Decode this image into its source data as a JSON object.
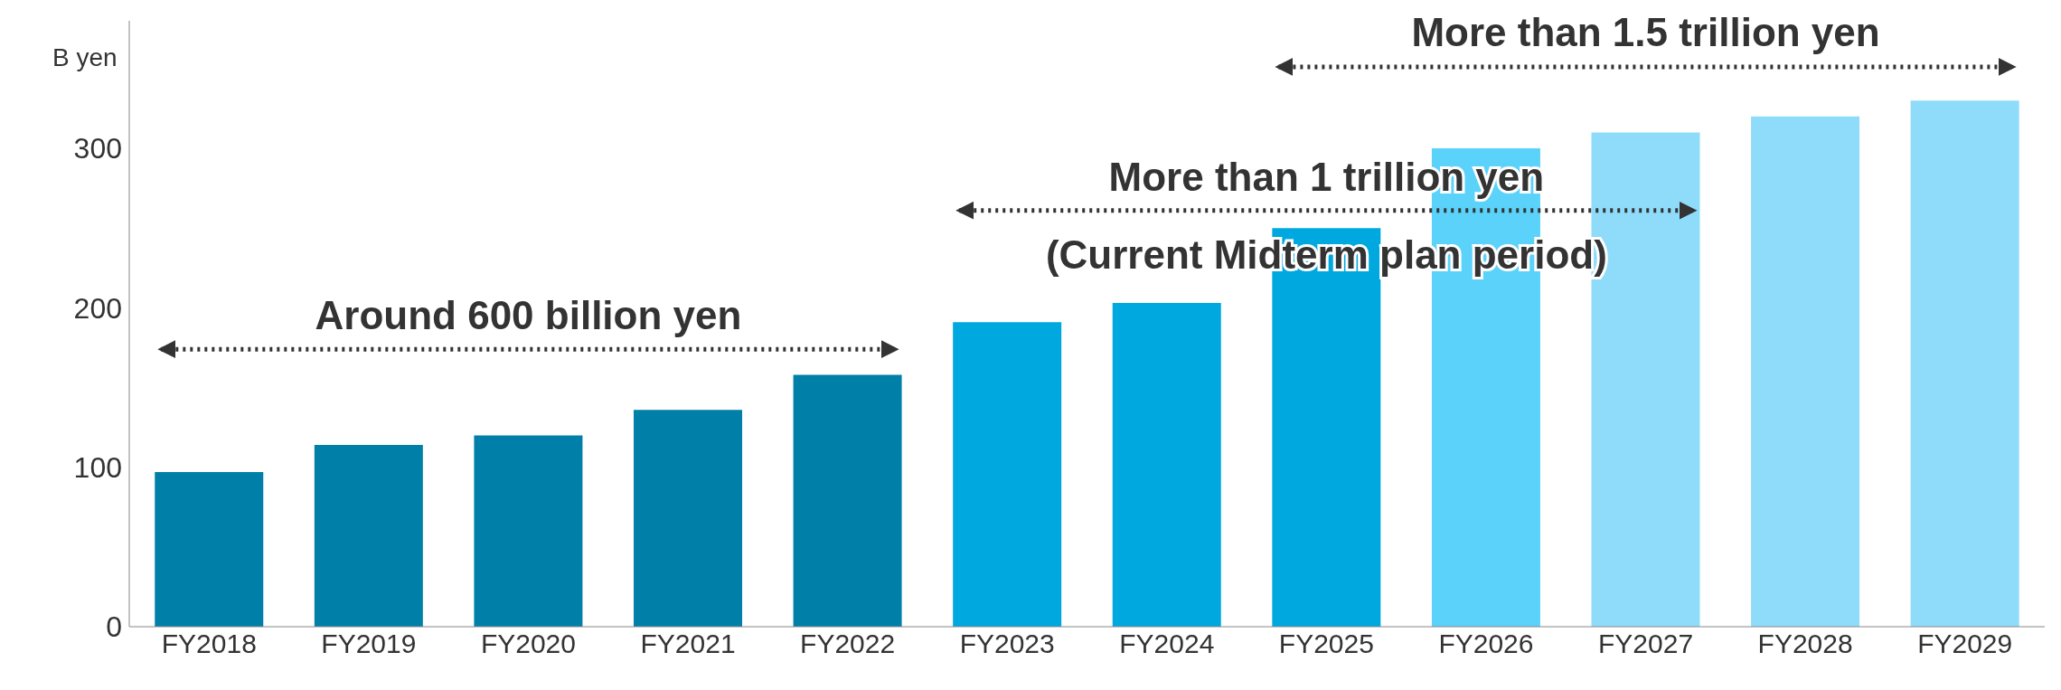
{
  "chart_data": {
    "type": "bar",
    "ylabel": "B yen",
    "categories": [
      "FY2018",
      "FY2019",
      "FY2020",
      "FY2021",
      "FY2022",
      "FY2023",
      "FY2024",
      "FY2025",
      "FY2026",
      "FY2027",
      "FY2028",
      "FY2029"
    ],
    "values": [
      97,
      114,
      120,
      136,
      158,
      191,
      203,
      250,
      300,
      310,
      320,
      330
    ],
    "colors": [
      "#007fa8",
      "#007fa8",
      "#007fa8",
      "#007fa8",
      "#007fa8",
      "#00a8e0",
      "#00a8e0",
      "#00a8e0",
      "#5ad2fa",
      "#8fdcfa",
      "#8fdcfa",
      "#8fdcfa"
    ],
    "ylim": [
      0,
      380
    ],
    "yticks": [
      0,
      100,
      200,
      300
    ],
    "grid": false,
    "legend": false,
    "annotations": [
      "Around 600 billion yen",
      "More than 1 trillion yen",
      "(Current Midterm plan period)",
      "More than 1.5 trillion yen"
    ]
  }
}
